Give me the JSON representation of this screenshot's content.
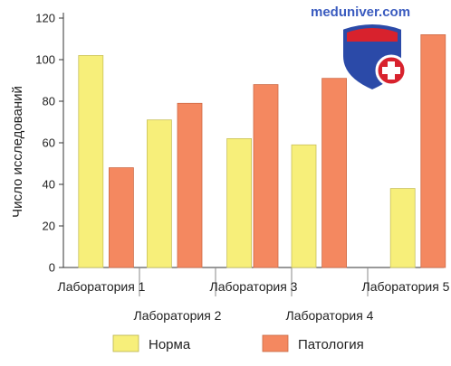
{
  "chart_data": {
    "type": "bar",
    "title": "",
    "xlabel": "",
    "ylabel": "Число исследований",
    "ylim": [
      0,
      120
    ],
    "yticks": [
      0,
      20,
      40,
      60,
      80,
      100,
      120
    ],
    "grid": false,
    "legend_position": "bottom",
    "categories": [
      "Лаборатория 1",
      "Лаборатория 2",
      "Лаборатория 3",
      "Лаборатория 4",
      "Лаборатория 5"
    ],
    "series": [
      {
        "name": "Норма",
        "color": "#f7ef7a",
        "values": [
          102,
          71,
          62,
          59,
          38
        ]
      },
      {
        "name": "Патология",
        "color": "#f48860",
        "values": [
          48,
          79,
          88,
          91,
          112
        ]
      }
    ]
  },
  "watermark": {
    "text": "meduniver.com",
    "colors": {
      "shield_blue": "#2b4aa8",
      "shield_red": "#d8222d"
    }
  }
}
